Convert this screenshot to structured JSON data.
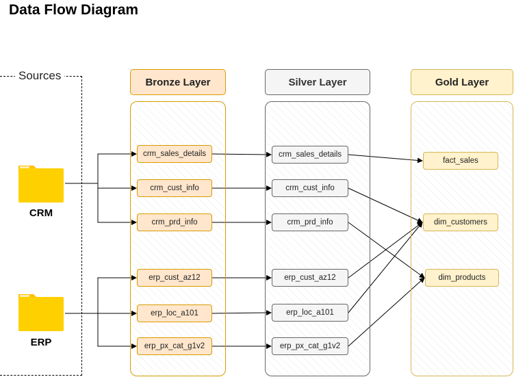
{
  "title": "Data Flow Diagram",
  "sources": {
    "label": "Sources",
    "items": [
      {
        "id": "crm",
        "label": "CRM",
        "icon": "folder-icon"
      },
      {
        "id": "erp",
        "label": "ERP",
        "icon": "folder-icon"
      }
    ]
  },
  "layers": {
    "bronze": {
      "label": "Bronze Layer",
      "nodes": [
        "crm_sales_details",
        "crm_cust_info",
        "crm_prd_info",
        "erp_cust_az12",
        "erp_loc_a101",
        "erp_px_cat_g1v2"
      ]
    },
    "silver": {
      "label": "Silver Layer",
      "nodes": [
        "crm_sales_details",
        "crm_cust_info",
        "crm_prd_info",
        "erp_cust_az12",
        "erp_loc_a101",
        "erp_px_cat_g1v2"
      ]
    },
    "gold": {
      "label": "Gold Layer",
      "nodes": [
        "fact_sales",
        "dim_customers",
        "dim_products"
      ]
    }
  },
  "colors": {
    "bronze_fill": "#ffe6cc",
    "bronze_stroke": "#d79b00",
    "silver_fill": "#f5f5f5",
    "silver_stroke": "#666666",
    "gold_fill": "#fff2cc",
    "gold_stroke": "#d6b656",
    "folder": "#ffd000"
  },
  "edges": [
    [
      "crm",
      "bronze.0"
    ],
    [
      "crm",
      "bronze.1"
    ],
    [
      "crm",
      "bronze.2"
    ],
    [
      "erp",
      "bronze.3"
    ],
    [
      "erp",
      "bronze.4"
    ],
    [
      "erp",
      "bronze.5"
    ],
    [
      "bronze.0",
      "silver.0"
    ],
    [
      "bronze.1",
      "silver.1"
    ],
    [
      "bronze.2",
      "silver.2"
    ],
    [
      "bronze.3",
      "silver.3"
    ],
    [
      "bronze.4",
      "silver.4"
    ],
    [
      "bronze.5",
      "silver.5"
    ],
    [
      "silver.0",
      "gold.0"
    ],
    [
      "silver.1",
      "gold.1"
    ],
    [
      "silver.3",
      "gold.1"
    ],
    [
      "silver.4",
      "gold.1"
    ],
    [
      "silver.2",
      "gold.2"
    ],
    [
      "silver.5",
      "gold.2"
    ]
  ]
}
